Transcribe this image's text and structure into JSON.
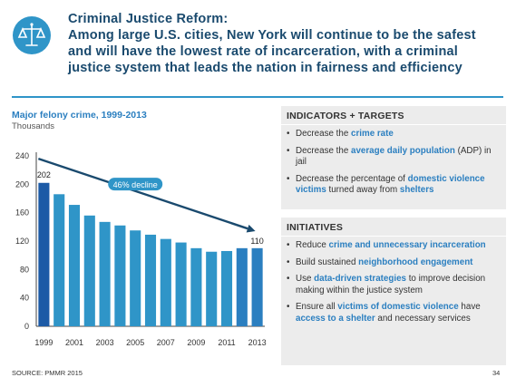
{
  "header": {
    "line1": "Criminal Justice Reform:",
    "line2": "Among large U.S. cities, New York will continue to be the safest",
    "line3": "and will have the lowest rate of incarceration, with a criminal",
    "line4": "justice system that leads the nation in fairness and efficiency",
    "logo_icon": "scales-of-justice-icon"
  },
  "chart_data": {
    "type": "bar",
    "title": "Major felony crime, 1999-2013",
    "subtitle": "Thousands",
    "categories": [
      "1999",
      "2000",
      "2001",
      "2002",
      "2003",
      "2004",
      "2005",
      "2006",
      "2007",
      "2008",
      "2009",
      "2010",
      "2011",
      "2012",
      "2013"
    ],
    "values": [
      202,
      186,
      171,
      156,
      147,
      142,
      135,
      129,
      123,
      118,
      110,
      105,
      106,
      110,
      110
    ],
    "y_ticks": [
      "0",
      "40",
      "80",
      "120",
      "160",
      "200",
      "240"
    ],
    "x_tick_labels": [
      "1999",
      "2001",
      "2003",
      "2005",
      "2007",
      "2009",
      "2011",
      "2013"
    ],
    "ylim": [
      0,
      240
    ],
    "data_labels": {
      "first": "202",
      "last": "110"
    },
    "annotation": "46% decline",
    "colors": {
      "first_bar": "#1c5aa6",
      "bars": "#2f95c8",
      "last_bars": "#2b7fc0",
      "arrow": "#1a4a6e"
    }
  },
  "indicators": {
    "heading": "INDICATORS + TARGETS",
    "items": [
      {
        "pre": "Decrease the ",
        "hl": "crime rate",
        "post": ""
      },
      {
        "pre": "Decrease the ",
        "hl": "average daily population",
        "post": " (ADP) in jail"
      },
      {
        "pre": "Decrease the percentage of ",
        "hl": "domestic violence victims",
        "mid": " turned away from ",
        "hl2": "shelters"
      }
    ]
  },
  "initiatives": {
    "heading": "INITIATIVES",
    "items": [
      {
        "pre": "Reduce ",
        "hl": "crime and unnecessary incarceration",
        "post": ""
      },
      {
        "pre": "Build sustained ",
        "hl": "neighborhood engagement",
        "post": ""
      },
      {
        "pre": "Use ",
        "hl": "data-driven strategies",
        "post": " to improve decision making within the justice system"
      },
      {
        "pre": "Ensure all ",
        "hl": "victims of domestic violence",
        "mid": " have ",
        "hl2": "access to a shelter",
        "post": " and necessary services"
      }
    ]
  },
  "footer": {
    "source": "SOURCE: PMMR 2015",
    "page": "34"
  }
}
